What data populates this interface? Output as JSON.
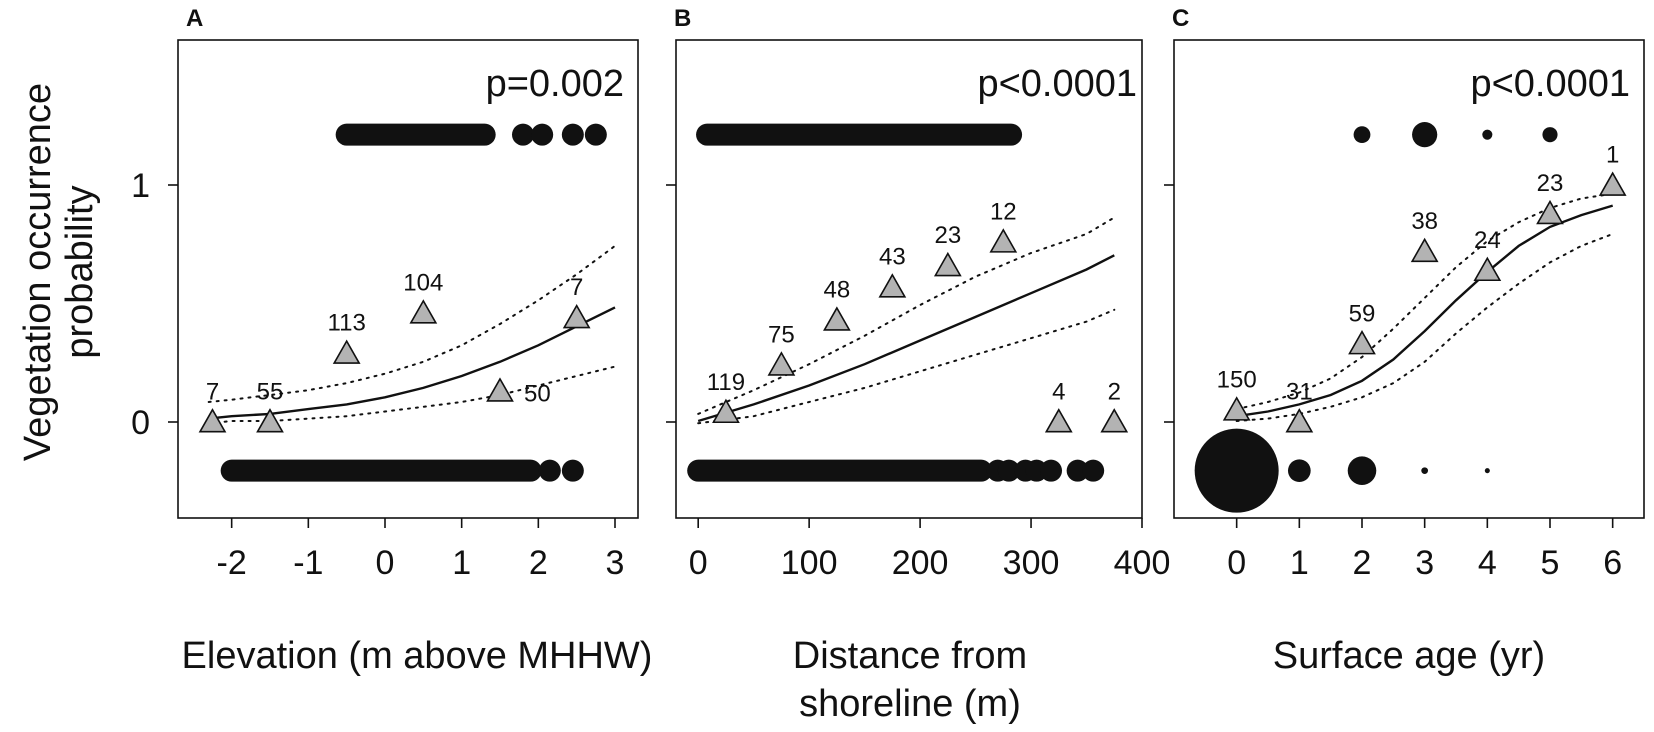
{
  "figure": {
    "ylabel_lines": [
      "Vegetation occurrence",
      "probability"
    ],
    "y_ticks": [
      0,
      1
    ],
    "colors": {
      "marker_fill": "#b3b3b3",
      "ink": "#111111",
      "background": "#ffffff"
    }
  },
  "chart_data": [
    {
      "type": "scatter",
      "panel": "A",
      "p_value": "p=0.002",
      "xlabel_lines": [
        "Elevation (m above MHHW)"
      ],
      "xlim": [
        -2.7,
        3.3
      ],
      "ylim": [
        -0.4,
        1.62
      ],
      "x_ticks": [
        -2,
        -1,
        0,
        1,
        2,
        3
      ],
      "x_tick_labels": [
        "-2",
        "-1",
        "0",
        "1",
        "2",
        "3"
      ],
      "binned_means": [
        {
          "x": -2.25,
          "y": 0.0,
          "n": "7"
        },
        {
          "x": -1.5,
          "y": 0.0,
          "n": "55"
        },
        {
          "x": -0.5,
          "y": 0.29,
          "n": "113"
        },
        {
          "x": 0.5,
          "y": 0.46,
          "n": "104"
        },
        {
          "x": 1.5,
          "y": 0.13,
          "n": "50"
        },
        {
          "x": 2.5,
          "y": 0.44,
          "n": "7"
        }
      ],
      "presence_y": 1.22,
      "absence_y": -0.2,
      "presence_segments": [
        [
          -0.5,
          1.3
        ]
      ],
      "presence_points": [
        1.8,
        2.05,
        2.45,
        2.75
      ],
      "absence_segments": [
        [
          -2.0,
          1.9
        ]
      ],
      "absence_points": [
        2.15,
        2.45
      ],
      "fit": {
        "x": [
          -2.3,
          -2.0,
          -1.5,
          -1.0,
          -0.5,
          0.0,
          0.5,
          1.0,
          1.5,
          2.0,
          2.5,
          3.0
        ],
        "y": [
          0.02,
          0.03,
          0.04,
          0.06,
          0.08,
          0.11,
          0.15,
          0.2,
          0.26,
          0.33,
          0.41,
          0.49
        ]
      },
      "ci_upper": {
        "x": [
          -2.3,
          -2.0,
          -1.5,
          -1.0,
          -0.5,
          0.0,
          0.5,
          1.0,
          1.5,
          2.0,
          2.5,
          3.0
        ],
        "y": [
          0.09,
          0.1,
          0.12,
          0.14,
          0.17,
          0.21,
          0.26,
          0.33,
          0.42,
          0.52,
          0.63,
          0.75
        ]
      },
      "ci_lower": {
        "x": [
          -2.3,
          -2.0,
          -1.5,
          -1.0,
          -0.5,
          0.0,
          0.5,
          1.0,
          1.5,
          2.0,
          2.5,
          3.0
        ],
        "y": [
          0.0,
          0.01,
          0.01,
          0.02,
          0.03,
          0.05,
          0.07,
          0.09,
          0.12,
          0.16,
          0.2,
          0.24
        ]
      }
    },
    {
      "type": "scatter",
      "panel": "B",
      "p_value": "p<0.0001",
      "xlabel_lines": [
        "Distance from",
        "shoreline (m)"
      ],
      "xlim": [
        -20,
        400
      ],
      "ylim": [
        -0.4,
        1.62
      ],
      "x_ticks": [
        0,
        100,
        200,
        300,
        400
      ],
      "x_tick_labels": [
        "0",
        "100",
        "200",
        "300",
        "400"
      ],
      "binned_means": [
        {
          "x": 25,
          "y": 0.04,
          "n": "119"
        },
        {
          "x": 75,
          "y": 0.24,
          "n": "75"
        },
        {
          "x": 125,
          "y": 0.43,
          "n": "48"
        },
        {
          "x": 175,
          "y": 0.57,
          "n": "43"
        },
        {
          "x": 225,
          "y": 0.66,
          "n": "23"
        },
        {
          "x": 275,
          "y": 0.76,
          "n": "12"
        },
        {
          "x": 325,
          "y": 0.0,
          "n": "4"
        },
        {
          "x": 375,
          "y": 0.0,
          "n": "2"
        }
      ],
      "presence_y": 1.22,
      "absence_y": -0.2,
      "presence_segments": [
        [
          8,
          282
        ]
      ],
      "presence_points": [],
      "absence_segments": [
        [
          0,
          255
        ]
      ],
      "absence_points": [
        270,
        280,
        295,
        305,
        318,
        342,
        356
      ],
      "fit": {
        "x": [
          0,
          50,
          100,
          150,
          200,
          250,
          300,
          350,
          375
        ],
        "y": [
          0.01,
          0.08,
          0.16,
          0.25,
          0.35,
          0.45,
          0.55,
          0.65,
          0.71
        ]
      },
      "ci_upper": {
        "x": [
          0,
          50,
          100,
          150,
          200,
          250,
          300,
          350,
          375
        ],
        "y": [
          0.04,
          0.14,
          0.25,
          0.37,
          0.5,
          0.62,
          0.72,
          0.8,
          0.87
        ]
      },
      "ci_lower": {
        "x": [
          0,
          50,
          100,
          150,
          200,
          250,
          300,
          350,
          375
        ],
        "y": [
          0.0,
          0.03,
          0.09,
          0.15,
          0.22,
          0.29,
          0.36,
          0.43,
          0.48
        ]
      }
    },
    {
      "type": "scatter",
      "panel": "C",
      "p_value": "p<0.0001",
      "xlabel_lines": [
        "Surface age (yr)"
      ],
      "xlim": [
        -1.0,
        6.5
      ],
      "ylim": [
        -0.4,
        1.62
      ],
      "x_ticks": [
        0,
        1,
        2,
        3,
        4,
        5,
        6
      ],
      "x_tick_labels": [
        "0",
        "1",
        "2",
        "3",
        "4",
        "5",
        "6"
      ],
      "binned_means": [
        {
          "x": 0,
          "y": 0.05,
          "n": "150"
        },
        {
          "x": 1,
          "y": 0.0,
          "n": "31"
        },
        {
          "x": 2,
          "y": 0.33,
          "n": "59"
        },
        {
          "x": 3,
          "y": 0.72,
          "n": "38"
        },
        {
          "x": 4,
          "y": 0.64,
          "n": "24"
        },
        {
          "x": 5,
          "y": 0.88,
          "n": "23"
        },
        {
          "x": 6,
          "y": 1.0,
          "n": "1"
        }
      ],
      "presence_y": 1.22,
      "absence_y": -0.2,
      "presence_sized": [
        {
          "x": 2,
          "size": 0.2
        },
        {
          "x": 3,
          "size": 0.3
        },
        {
          "x": 4,
          "size": 0.12
        },
        {
          "x": 5,
          "size": 0.18
        }
      ],
      "absence_sized": [
        {
          "x": 0,
          "size": 1.0
        },
        {
          "x": 1,
          "size": 0.27
        },
        {
          "x": 2,
          "size": 0.34
        },
        {
          "x": 3,
          "size": 0.08
        },
        {
          "x": 4,
          "size": 0.06
        }
      ],
      "fit": {
        "x": [
          0,
          0.5,
          1,
          1.5,
          2,
          2.5,
          3,
          3.5,
          4,
          4.5,
          5,
          5.5,
          6
        ],
        "y": [
          0.03,
          0.05,
          0.08,
          0.12,
          0.18,
          0.27,
          0.39,
          0.52,
          0.64,
          0.75,
          0.83,
          0.88,
          0.92
        ]
      },
      "ci_upper": {
        "x": [
          0,
          0.5,
          1,
          1.5,
          2,
          2.5,
          3,
          3.5,
          4,
          4.5,
          5,
          5.5,
          6
        ],
        "y": [
          0.06,
          0.09,
          0.13,
          0.19,
          0.28,
          0.4,
          0.53,
          0.66,
          0.77,
          0.85,
          0.91,
          0.95,
          0.97
        ]
      },
      "ci_lower": {
        "x": [
          0,
          0.5,
          1,
          1.5,
          2,
          2.5,
          3,
          3.5,
          4,
          4.5,
          5,
          5.5,
          6
        ],
        "y": [
          0.01,
          0.02,
          0.04,
          0.07,
          0.11,
          0.17,
          0.26,
          0.38,
          0.49,
          0.59,
          0.68,
          0.75,
          0.8
        ]
      }
    }
  ]
}
